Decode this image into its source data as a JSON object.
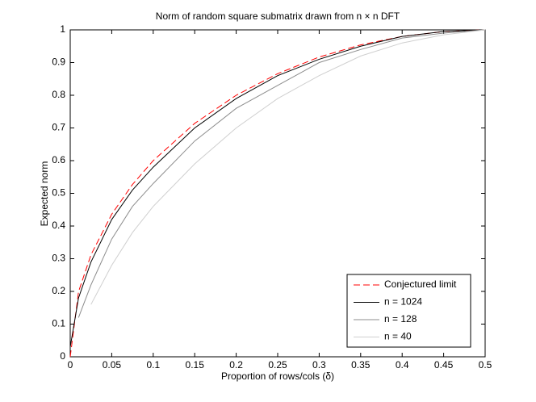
{
  "chart_data": {
    "type": "line",
    "title": "Norm of random square submatrix drawn from n × n DFT",
    "x_label": "Proportion of rows/cols (δ)",
    "y_label": "Expected norm",
    "x": [
      0,
      0.01,
      0.025,
      0.05,
      0.075,
      0.1,
      0.15,
      0.2,
      0.25,
      0.3,
      0.35,
      0.4,
      0.45,
      0.5
    ],
    "series": [
      {
        "name": "Conjectured limit",
        "color": "#ff0000",
        "dashed": true,
        "values": [
          0,
          0.199,
          0.312,
          0.436,
          0.527,
          0.6,
          0.714,
          0.8,
          0.866,
          0.917,
          0.954,
          0.98,
          0.995,
          1
        ]
      },
      {
        "name": "n = 1024",
        "color": "#000000",
        "dashed": false,
        "values": [
          0.03,
          0.18,
          0.29,
          0.42,
          0.51,
          0.58,
          0.7,
          0.79,
          0.86,
          0.91,
          0.95,
          0.98,
          0.995,
          1
        ]
      },
      {
        "name": "n = 128",
        "color": "#8c8c8c",
        "dashed": false,
        "values": [
          null,
          0.12,
          0.22,
          0.36,
          0.46,
          0.53,
          0.66,
          0.76,
          0.83,
          0.9,
          0.94,
          0.975,
          0.99,
          1
        ]
      },
      {
        "name": "n = 40",
        "color": "#cfcfcf",
        "dashed": false,
        "values": [
          null,
          null,
          0.16,
          0.28,
          0.38,
          0.46,
          0.59,
          0.7,
          0.79,
          0.86,
          0.92,
          0.96,
          0.985,
          1
        ]
      }
    ],
    "xlim": [
      0,
      0.5
    ],
    "xticks": [
      0,
      0.05,
      0.1,
      0.15,
      0.2,
      0.25,
      0.3,
      0.35,
      0.4,
      0.45,
      0.5
    ],
    "ylim": [
      0,
      1
    ],
    "yticks": [
      0,
      0.1,
      0.2,
      0.3,
      0.4,
      0.5,
      0.6,
      0.7,
      0.8,
      0.9,
      1
    ],
    "legend": "lower right"
  }
}
